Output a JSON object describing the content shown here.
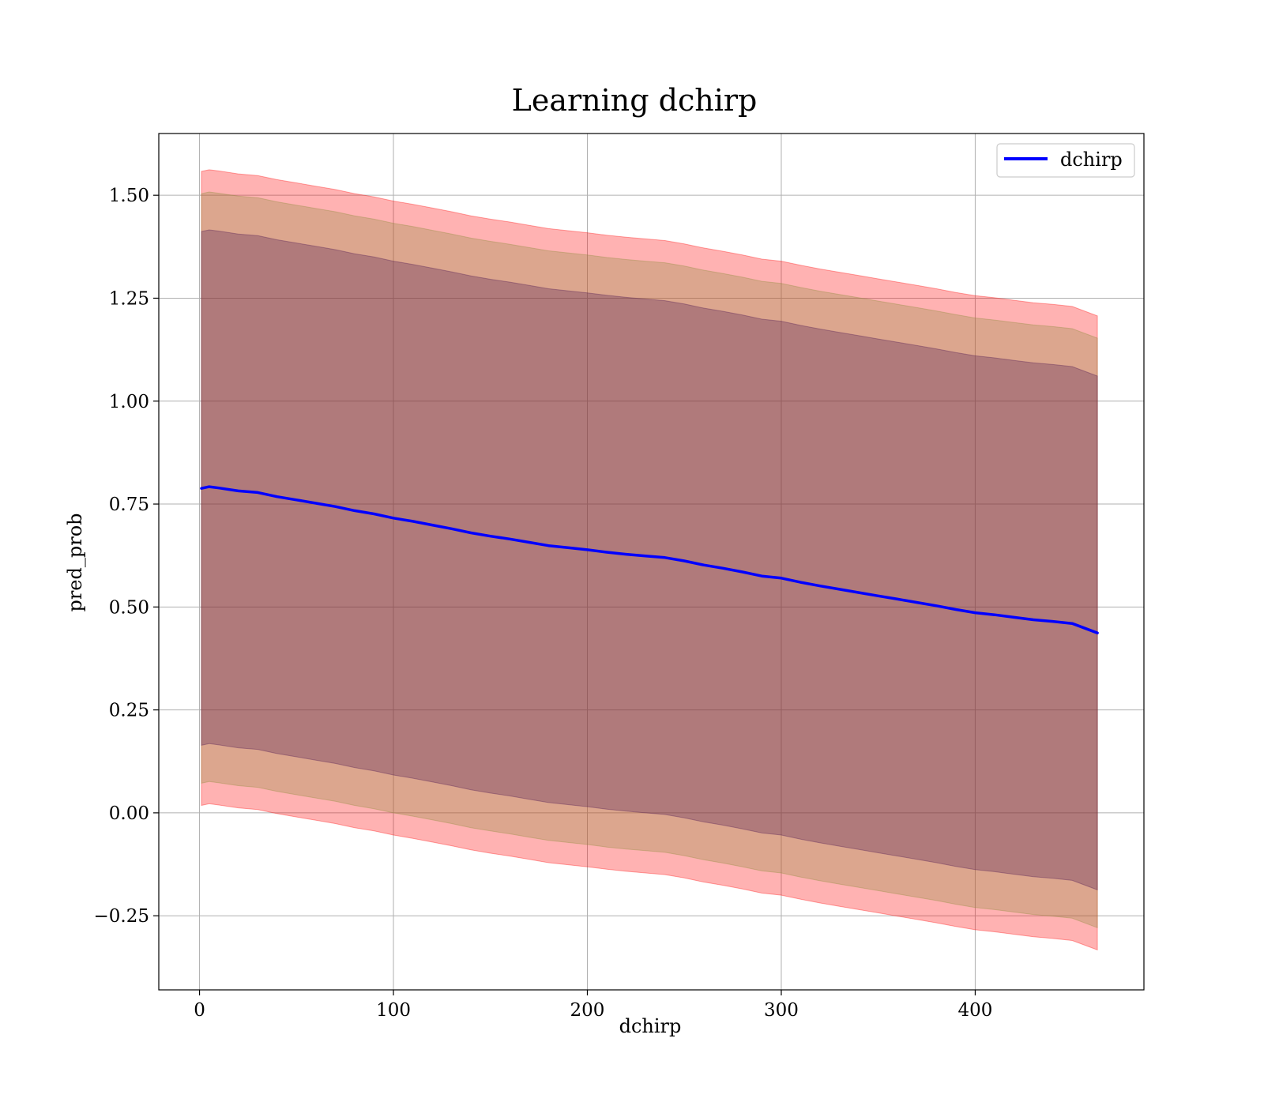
{
  "chart_data": {
    "type": "line",
    "title": "Learning dchirp",
    "xlabel": "dchirp",
    "ylabel": "pred_prob",
    "xlim": [
      -21,
      487
    ],
    "ylim": [
      -0.43,
      1.65
    ],
    "xticks": [
      0,
      100,
      200,
      300,
      400
    ],
    "xtick_labels": [
      "0",
      "100",
      "200",
      "300",
      "400"
    ],
    "yticks": [
      -0.25,
      0,
      0.25,
      0.5,
      0.75,
      1.0,
      1.25,
      1.5
    ],
    "ytick_labels": [
      "−0.25",
      "0.00",
      "0.25",
      "0.50",
      "0.75",
      "1.00",
      "1.25",
      "1.50"
    ],
    "grid": true,
    "legend": {
      "position": "top-right",
      "entries": [
        "dchirp"
      ]
    },
    "mean_series": {
      "name": "dchirp",
      "color": "#0000ff",
      "x": [
        1,
        5,
        10,
        20,
        30,
        40,
        50,
        60,
        70,
        80,
        90,
        100,
        110,
        120,
        130,
        140,
        150,
        160,
        170,
        180,
        190,
        200,
        210,
        220,
        230,
        240,
        250,
        260,
        270,
        280,
        290,
        300,
        310,
        320,
        330,
        340,
        350,
        360,
        370,
        380,
        390,
        400,
        410,
        420,
        430,
        440,
        450,
        463
      ],
      "y": [
        0.788,
        0.792,
        0.789,
        0.782,
        0.778,
        0.768,
        0.76,
        0.752,
        0.744,
        0.734,
        0.726,
        0.716,
        0.708,
        0.699,
        0.69,
        0.68,
        0.672,
        0.665,
        0.657,
        0.649,
        0.644,
        0.639,
        0.633,
        0.628,
        0.624,
        0.62,
        0.612,
        0.602,
        0.594,
        0.585,
        0.575,
        0.57,
        0.56,
        0.551,
        0.543,
        0.535,
        0.527,
        0.519,
        0.511,
        0.503,
        0.494,
        0.486,
        0.481,
        0.475,
        0.469,
        0.465,
        0.46,
        0.437
      ]
    },
    "bands": [
      {
        "name": "band-outer",
        "color": "#ff0000",
        "opacity": 0.3,
        "lower_offset": -0.77,
        "upper_offset": 0.77
      },
      {
        "name": "band-middle",
        "color": "#8c8c3a",
        "opacity": 0.3,
        "lower_offset": -0.716,
        "upper_offset": 0.716
      },
      {
        "name": "band-inner",
        "color": "#4b1550",
        "opacity": 0.3,
        "lower_offset": -0.624,
        "upper_offset": 0.624
      }
    ]
  }
}
